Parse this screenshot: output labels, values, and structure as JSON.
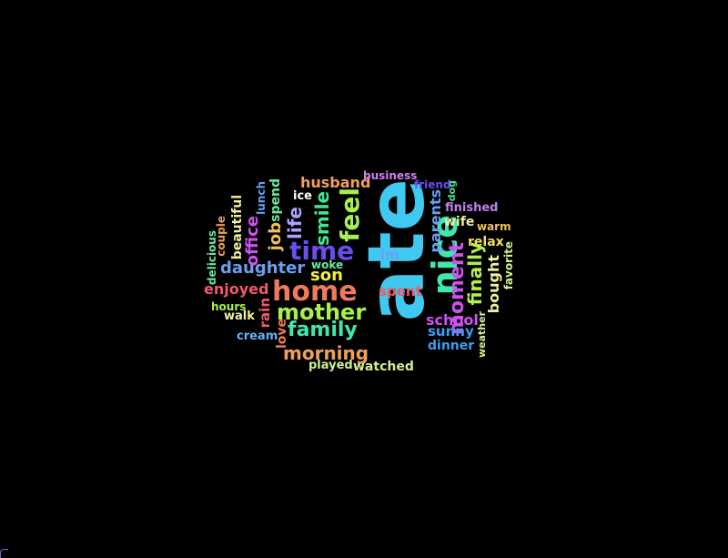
{
  "words": [
    {
      "text": "ate",
      "color": "#3fc8f0",
      "orientation": "vertical"
    },
    {
      "text": "home",
      "color": "#f07a5a",
      "orientation": "horizontal"
    },
    {
      "text": "time",
      "color": "#6a4cf0",
      "orientation": "horizontal"
    },
    {
      "text": "nice",
      "color": "#3ee8b0",
      "orientation": "vertical"
    },
    {
      "text": "mother",
      "color": "#a6f050",
      "orientation": "horizontal"
    },
    {
      "text": "family",
      "color": "#3ee8b0",
      "orientation": "horizontal"
    },
    {
      "text": "feel",
      "color": "#a6f050",
      "orientation": "vertical"
    },
    {
      "text": "daughter",
      "color": "#6aa0f0",
      "orientation": "horizontal"
    },
    {
      "text": "moment",
      "color": "#d050f0",
      "orientation": "vertical"
    },
    {
      "text": "morning",
      "color": "#f0a05a",
      "orientation": "horizontal"
    },
    {
      "text": "smile",
      "color": "#3ee890",
      "orientation": "vertical"
    },
    {
      "text": "enjoyed",
      "color": "#f05a6a",
      "orientation": "horizontal"
    },
    {
      "text": "finally",
      "color": "#b0f050",
      "orientation": "vertical"
    },
    {
      "text": "son",
      "color": "#f0f03e",
      "orientation": "horizontal"
    },
    {
      "text": "life",
      "color": "#b0a0ff",
      "orientation": "vertical"
    },
    {
      "text": "husband",
      "color": "#f0a05a",
      "orientation": "horizontal"
    },
    {
      "text": "school",
      "color": "#d050f0",
      "orientation": "horizontal"
    },
    {
      "text": "job",
      "color": "#f0c05a",
      "orientation": "vertical"
    },
    {
      "text": "parents",
      "color": "#6aa0f0",
      "orientation": "vertical"
    },
    {
      "text": "office",
      "color": "#d050f0",
      "orientation": "vertical"
    },
    {
      "text": "bought",
      "color": "#f0f0a0",
      "orientation": "vertical"
    },
    {
      "text": "spent",
      "color": "#f05a6a",
      "orientation": "horizontal"
    },
    {
      "text": "sunny",
      "color": "#3e9ef0",
      "orientation": "horizontal"
    },
    {
      "text": "relax",
      "color": "#f0e05a",
      "orientation": "horizontal"
    },
    {
      "text": "wife",
      "color": "#f0f0a0",
      "orientation": "horizontal"
    },
    {
      "text": "spend",
      "color": "#6ae8a0",
      "orientation": "vertical"
    },
    {
      "text": "im",
      "color": "#6aa0f0",
      "orientation": "horizontal"
    },
    {
      "text": "dinner",
      "color": "#3e9ef0",
      "orientation": "horizontal"
    },
    {
      "text": "watched",
      "color": "#d0f090",
      "orientation": "horizontal"
    },
    {
      "text": "finished",
      "color": "#c080f0",
      "orientation": "horizontal"
    },
    {
      "text": "beautiful",
      "color": "#f0f0a0",
      "orientation": "vertical"
    },
    {
      "text": "rain",
      "color": "#f05a6a",
      "orientation": "vertical"
    },
    {
      "text": "cream",
      "color": "#6ab0f0",
      "orientation": "horizontal"
    },
    {
      "text": "walk",
      "color": "#f0f0a0",
      "orientation": "horizontal"
    },
    {
      "text": "ice",
      "color": "#ffffff",
      "orientation": "horizontal"
    },
    {
      "text": "love",
      "color": "#f07a5a",
      "orientation": "vertical"
    },
    {
      "text": "lunch",
      "color": "#6aa0f0",
      "orientation": "vertical"
    },
    {
      "text": "business",
      "color": "#d080f0",
      "orientation": "horizontal"
    },
    {
      "text": "friend",
      "color": "#6a4cf0",
      "orientation": "horizontal"
    },
    {
      "text": "favorite",
      "color": "#d0f090",
      "orientation": "vertical"
    },
    {
      "text": "couple",
      "color": "#f0a05a",
      "orientation": "vertical"
    },
    {
      "text": "played",
      "color": "#d0f090",
      "orientation": "horizontal"
    },
    {
      "text": "hours",
      "color": "#a6f050",
      "orientation": "horizontal"
    },
    {
      "text": "woke",
      "color": "#6ae8a0",
      "orientation": "horizontal"
    },
    {
      "text": "warm",
      "color": "#f0c05a",
      "orientation": "horizontal"
    },
    {
      "text": "delicious",
      "color": "#6ae8a0",
      "orientation": "vertical"
    },
    {
      "text": "weather",
      "color": "#d0f090",
      "orientation": "vertical"
    },
    {
      "text": "dog",
      "color": "#3ee890",
      "orientation": "vertical"
    }
  ]
}
